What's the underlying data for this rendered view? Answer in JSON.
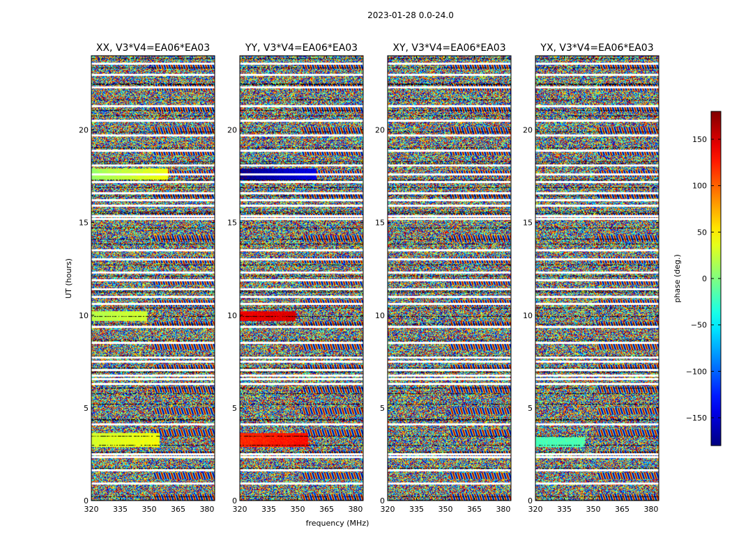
{
  "chart_data": {
    "type": "heatmap",
    "suptitle": "2023-01-28 0.0-24.0",
    "xlabel": "frequency (MHz)",
    "ylabel": "UT (hours)",
    "xlim": [
      320,
      384
    ],
    "ylim": [
      0,
      24
    ],
    "xticks": [
      "320",
      "335",
      "350",
      "365",
      "380"
    ],
    "yticks": [
      "0",
      "5",
      "10",
      "15",
      "20"
    ],
    "panels": [
      {
        "title": "XX, V3*V4=EA06*EA03",
        "coherent_bands": [
          [
            17.3,
            17.9,
            10,
            170,
            0.62
          ],
          [
            9.7,
            10.2,
            20,
            60,
            0.45
          ],
          [
            2.9,
            3.6,
            30,
            70,
            0.55
          ]
        ]
      },
      {
        "title": "YY, V3*V4=EA06*EA03",
        "coherent_bands": [
          [
            17.3,
            17.9,
            -175,
            170,
            0.62
          ],
          [
            9.7,
            10.2,
            140,
            60,
            0.45
          ],
          [
            2.9,
            3.6,
            120,
            70,
            0.55
          ]
        ]
      },
      {
        "title": "XY, V3*V4=EA06*EA03",
        "coherent_bands": []
      },
      {
        "title": "YX, V3*V4=EA06*EA03",
        "coherent_bands": [
          [
            2.9,
            3.4,
            -20,
            20,
            0.4
          ]
        ]
      }
    ],
    "flagged_ut_hours": [
      0.9,
      1.6,
      2.35,
      2.5,
      4.1,
      6.3,
      6.55,
      6.75,
      7.05,
      7.5,
      7.7,
      8.5,
      9.35,
      10.6,
      11.0,
      11.4,
      11.9,
      12.3,
      13.0,
      13.5,
      15.2,
      15.35,
      15.9,
      16.2,
      16.6,
      17.2,
      17.6,
      18.1,
      18.9,
      19.7,
      20.5,
      21.3,
      22.3,
      23.0,
      23.6
    ],
    "colorbar": {
      "label": "phase (deg.)",
      "range": [
        -180,
        180
      ],
      "ticks": [
        "−150",
        "−100",
        "−50",
        "0",
        "50",
        "100",
        "150"
      ],
      "tick_values": [
        -150,
        -100,
        -50,
        0,
        50,
        100,
        150
      ],
      "colormap": "jet"
    }
  }
}
